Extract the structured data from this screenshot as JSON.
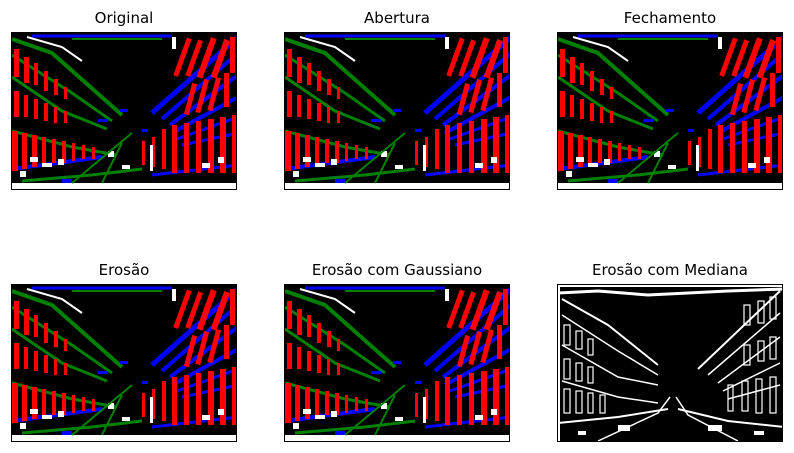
{
  "figure": {
    "panels": [
      {
        "title": "Original",
        "image": "segmented-street-color"
      },
      {
        "title": "Abertura",
        "image": "segmented-street-color"
      },
      {
        "title": "Fechamento",
        "image": "segmented-street-color"
      },
      {
        "title": "Erosão",
        "image": "segmented-street-color"
      },
      {
        "title": "Erosão com Gaussiano",
        "image": "segmented-street-color"
      },
      {
        "title": "Erosão com Mediana",
        "image": "street-edges-binary"
      }
    ]
  },
  "colors": {
    "background": "#000000",
    "red": "#ff0000",
    "green": "#008000",
    "blue": "#0000ff",
    "white": "#ffffff"
  }
}
